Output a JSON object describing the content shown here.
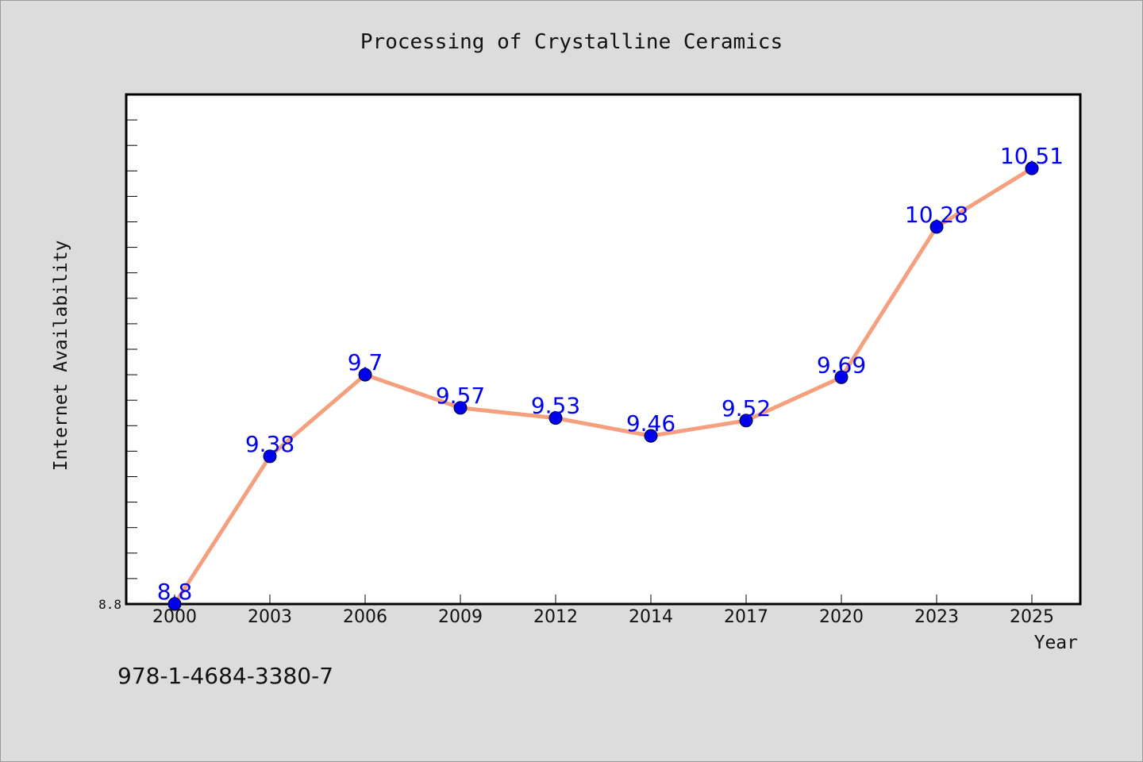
{
  "chart_data": {
    "type": "line",
    "title": "Processing of Crystalline Ceramics",
    "xlabel": "Year",
    "ylabel": "Internet Availability",
    "categories": [
      "2000",
      "2003",
      "2006",
      "2009",
      "2012",
      "2014",
      "2017",
      "2020",
      "2023",
      "2025"
    ],
    "series": [
      {
        "values": [
          8.8,
          9.38,
          9.7,
          9.57,
          9.53,
          9.46,
          9.52,
          9.69,
          10.28,
          10.51
        ],
        "labels": [
          "8.8",
          "9.38",
          "9.7",
          "9.57",
          "9.53",
          "9.46",
          "9.52",
          "9.69",
          "10.28",
          "10.51"
        ],
        "line_color": "#f4a07e",
        "marker_color": "#0000ee",
        "label_color": "#0000ee"
      }
    ],
    "ylim": [
      8.8,
      10.8
    ],
    "y_tick_labels": [
      "8.8"
    ],
    "grid": false,
    "legend": "none"
  },
  "footer": {
    "isbn": "978-1-4684-3380-7"
  }
}
